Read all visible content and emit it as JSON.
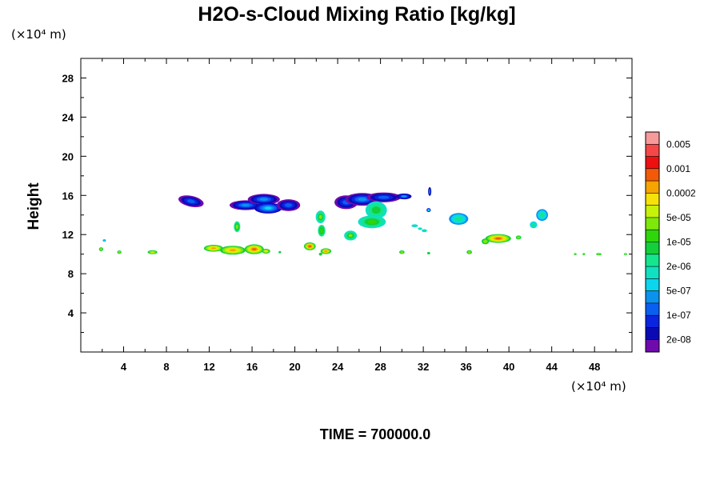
{
  "chart_data": {
    "type": "heatmap",
    "title": "H2O-s-Cloud Mixing Ratio [kg/kg]",
    "xlabel": "",
    "ylabel": "Height",
    "x_unit": "(×10⁴ m)",
    "y_unit": "(×10⁴ m)",
    "footer": "TIME = 700000.0",
    "xlim": [
      0,
      51.5
    ],
    "ylim": [
      0,
      30
    ],
    "x_ticks": [
      "4",
      "8",
      "12",
      "16",
      "20",
      "24",
      "28",
      "32",
      "36",
      "40",
      "44",
      "48"
    ],
    "y_ticks": [
      "4",
      "8",
      "12",
      "16",
      "20",
      "24",
      "28"
    ],
    "colorbar": {
      "labels": [
        "0.005",
        "0.001",
        "0.0002",
        "5e-05",
        "1e-05",
        "2e-06",
        "5e-07",
        "1e-07",
        "2e-08"
      ],
      "colors": [
        "#f79a9a",
        "#f54747",
        "#ee1010",
        "#f25a08",
        "#f5a400",
        "#f7e10a",
        "#c6f10a",
        "#7ee80a",
        "#2fd60a",
        "#12cf3a",
        "#14e58e",
        "#10e0c0",
        "#0ad6ee",
        "#0a92ee",
        "#0a5ff3",
        "#0a24e0",
        "#0a0ab4",
        "#6f0aad"
      ]
    },
    "regions": [
      {
        "name": "upper-left-blob",
        "x": [
          9.5,
          11.3
        ],
        "y": [
          14.8,
          16.0
        ],
        "level": "2e-08 to 1e-07"
      },
      {
        "name": "upper-mid-blob",
        "x": [
          14.2,
          18.5
        ],
        "y": [
          14.2,
          16.2
        ],
        "level": "2e-08 to 5e-07"
      },
      {
        "name": "upper-blob-2",
        "x": [
          18.0,
          20.5
        ],
        "y": [
          14.3,
          15.6
        ],
        "level": "2e-08 to 1e-07"
      },
      {
        "name": "upper-right-blob",
        "x": [
          23.8,
          31.0
        ],
        "y": [
          14.3,
          16.4
        ],
        "level": "2e-08 to 5e-07"
      },
      {
        "name": "column-28",
        "x": [
          26.4,
          29.0
        ],
        "y": [
          12.5,
          15.0
        ],
        "level": "5e-07 to 5e-05"
      },
      {
        "name": "cell-22",
        "x": [
          21.8,
          22.9
        ],
        "y": [
          11.6,
          14.2
        ],
        "level": "5e-07 to 5e-05"
      },
      {
        "name": "cell-35",
        "x": [
          34.6,
          36.1
        ],
        "y": [
          12.5,
          14.2
        ],
        "level": "5e-07 to 2e-06"
      },
      {
        "name": "cell-43",
        "x": [
          42.2,
          44.0
        ],
        "y": [
          12.6,
          14.7
        ],
        "level": "5e-07 to 1e-05"
      },
      {
        "name": "lower-band-16",
        "x": [
          11.5,
          18.0
        ],
        "y": [
          9.9,
          11.0
        ],
        "level": "1e-05 to 0.0002"
      },
      {
        "name": "lower-21",
        "x": [
          20.8,
          22.2
        ],
        "y": [
          10.2,
          11.2
        ],
        "level": "1e-05 to 0.001"
      },
      {
        "name": "lower-39",
        "x": [
          37.5,
          41.0
        ],
        "y": [
          11.0,
          12.3
        ],
        "level": "1e-05 to 0.001"
      },
      {
        "name": "mid-25",
        "x": [
          24.6,
          25.8
        ],
        "y": [
          11.5,
          12.6
        ],
        "level": "5e-07 to 5e-05"
      }
    ]
  }
}
